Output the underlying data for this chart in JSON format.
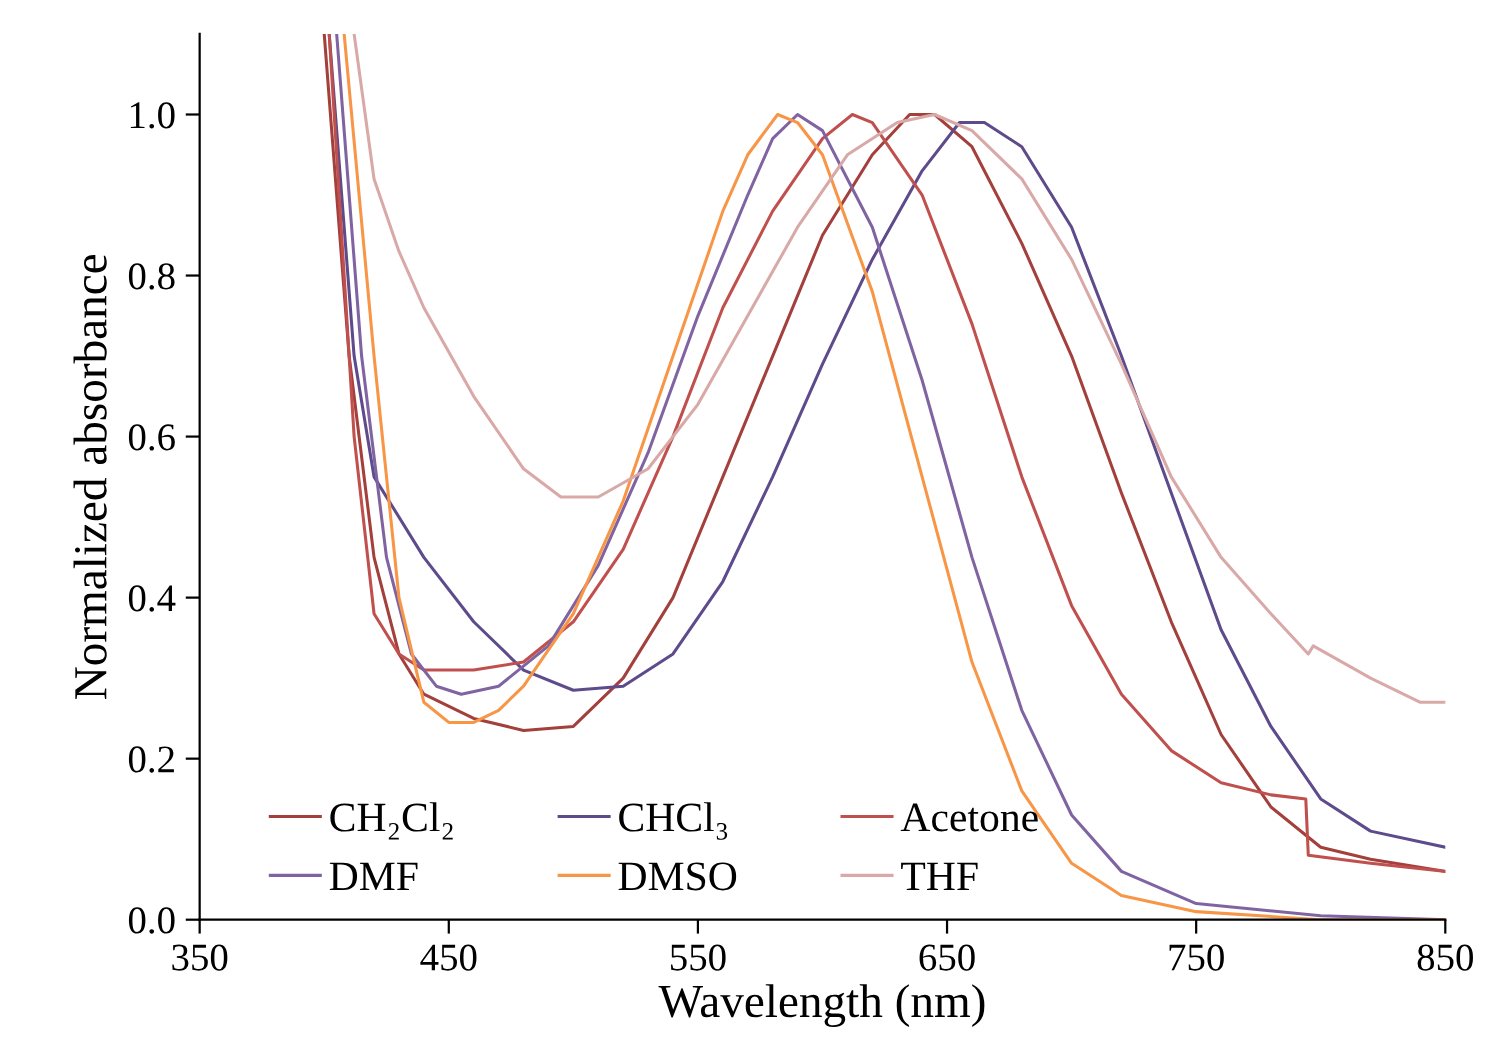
{
  "chart_data": {
    "type": "line",
    "xlabel": "Wavelength (nm)",
    "ylabel": "Normalized absorbance",
    "xlim": [
      350,
      850
    ],
    "xticks": [
      350,
      450,
      550,
      650,
      750,
      850
    ],
    "ylim": [
      0,
      1.1
    ],
    "yticks": [
      {
        "value": 0,
        "label": "0.0"
      },
      {
        "value": 0.2,
        "label": "0.2"
      },
      {
        "value": 0.4,
        "label": "0.4"
      },
      {
        "value": 0.6,
        "label": "0.6"
      },
      {
        "value": 0.8,
        "label": "0.8"
      },
      {
        "value": 1,
        "label": "1.0"
      }
    ],
    "grid": false,
    "legend": "bottom left",
    "marker": "none",
    "line_style": "solid",
    "series": [
      {
        "name": "CH₂Cl₂",
        "color": "#a3403c",
        "x": [
          400,
          410,
          420,
          430,
          440,
          460,
          480,
          500,
          520,
          540,
          560,
          580,
          600,
          620,
          635,
          645,
          660,
          680,
          700,
          720,
          740,
          750,
          760,
          780,
          800,
          820,
          850
        ],
        "values": [
          1.1,
          0.7,
          0.45,
          0.33,
          0.28,
          0.25,
          0.235,
          0.24,
          0.3,
          0.4,
          0.55,
          0.7,
          0.85,
          0.95,
          1.0,
          1.0,
          0.96,
          0.84,
          0.7,
          0.53,
          0.37,
          0.3,
          0.23,
          0.14,
          0.09,
          0.075,
          0.06
        ]
      },
      {
        "name": "CHCl₃",
        "color": "#5e4b8b",
        "x": [
          402,
          412,
          420,
          440,
          460,
          480,
          500,
          520,
          540,
          560,
          580,
          600,
          620,
          640,
          655,
          665,
          680,
          700,
          720,
          740,
          760,
          780,
          800,
          820,
          850
        ],
        "values": [
          1.1,
          0.7,
          0.55,
          0.45,
          0.37,
          0.31,
          0.285,
          0.29,
          0.33,
          0.42,
          0.55,
          0.69,
          0.82,
          0.93,
          0.99,
          0.99,
          0.96,
          0.86,
          0.7,
          0.53,
          0.36,
          0.24,
          0.15,
          0.11,
          0.09
        ]
      },
      {
        "name": "Acetone",
        "color": "#c0504d",
        "x": [
          402,
          412,
          420,
          430,
          440,
          460,
          480,
          500,
          520,
          540,
          560,
          580,
          600,
          612,
          620,
          640,
          660,
          680,
          700,
          720,
          740,
          760,
          780,
          794,
          795,
          820,
          850
        ],
        "values": [
          1.1,
          0.6,
          0.38,
          0.33,
          0.31,
          0.31,
          0.32,
          0.37,
          0.46,
          0.6,
          0.76,
          0.88,
          0.97,
          1.0,
          0.99,
          0.9,
          0.74,
          0.55,
          0.39,
          0.28,
          0.21,
          0.17,
          0.155,
          0.15,
          0.08,
          0.07,
          0.06
        ]
      },
      {
        "name": "DMF",
        "color": "#8064a2",
        "x": [
          405,
          415,
          425,
          435,
          445,
          455,
          470,
          490,
          510,
          530,
          550,
          570,
          580,
          590,
          600,
          620,
          640,
          660,
          680,
          700,
          720,
          750,
          800,
          850
        ],
        "values": [
          1.1,
          0.7,
          0.45,
          0.33,
          0.29,
          0.28,
          0.29,
          0.34,
          0.44,
          0.58,
          0.75,
          0.9,
          0.97,
          1.0,
          0.98,
          0.86,
          0.67,
          0.45,
          0.26,
          0.13,
          0.06,
          0.02,
          0.005,
          0
        ]
      },
      {
        "name": "DMSO",
        "color": "#f79646",
        "x": [
          408,
          420,
          430,
          440,
          450,
          460,
          470,
          480,
          500,
          520,
          540,
          560,
          570,
          582,
          590,
          600,
          620,
          640,
          660,
          680,
          700,
          720,
          750,
          800,
          850
        ],
        "values": [
          1.1,
          0.7,
          0.4,
          0.27,
          0.245,
          0.245,
          0.26,
          0.29,
          0.38,
          0.52,
          0.7,
          0.88,
          0.95,
          1.0,
          0.99,
          0.95,
          0.78,
          0.55,
          0.32,
          0.16,
          0.07,
          0.03,
          0.01,
          0,
          0
        ]
      },
      {
        "name": "THF",
        "color": "#d9a9a8",
        "x": [
          412,
          420,
          430,
          440,
          460,
          480,
          495,
          510,
          530,
          550,
          570,
          590,
          610,
          630,
          645,
          660,
          680,
          700,
          720,
          740,
          760,
          780,
          795,
          797,
          820,
          840,
          850
        ],
        "values": [
          1.1,
          0.92,
          0.83,
          0.76,
          0.65,
          0.56,
          0.525,
          0.525,
          0.56,
          0.64,
          0.75,
          0.86,
          0.95,
          0.99,
          1.0,
          0.98,
          0.92,
          0.82,
          0.69,
          0.55,
          0.45,
          0.38,
          0.33,
          0.34,
          0.3,
          0.27,
          0.27
        ]
      }
    ]
  }
}
